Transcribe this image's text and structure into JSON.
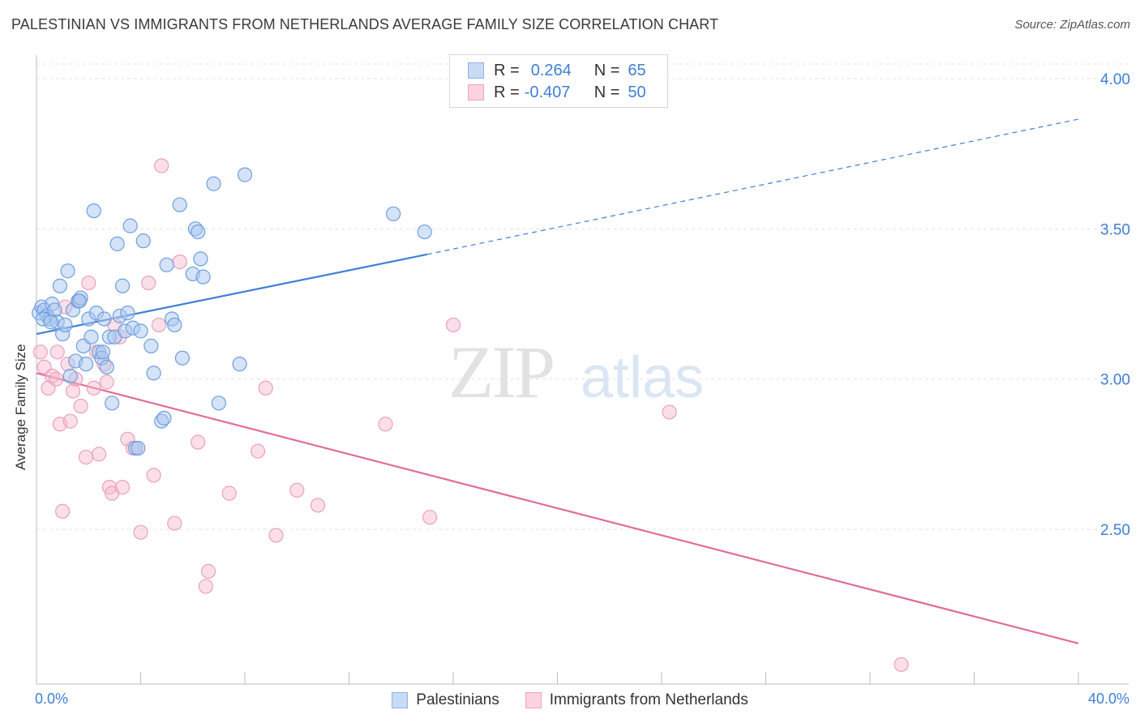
{
  "title": "PALESTINIAN VS IMMIGRANTS FROM NETHERLANDS AVERAGE FAMILY SIZE CORRELATION CHART",
  "source": "Source: ZipAtlas.com",
  "watermark": {
    "zip": "ZIP",
    "atlas": "atlas"
  },
  "legend": {
    "rows": [
      {
        "r_label": "R =",
        "r_value": "0.264",
        "n_label": "N =",
        "n_value": "65",
        "color": "#a9c7ef"
      },
      {
        "r_label": "R =",
        "r_value": "-0.407",
        "n_label": "N =",
        "n_value": "50",
        "color": "#f6b8cb"
      }
    ]
  },
  "x_axis": {
    "min_label": "0.0%",
    "max_label": "40.0%"
  },
  "chart_data": {
    "type": "scatter",
    "title": "PALESTINIAN VS IMMIGRANTS FROM NETHERLANDS AVERAGE FAMILY SIZE CORRELATION CHART",
    "xlabel": "",
    "ylabel": "Average Family Size",
    "xlim": [
      0,
      40
    ],
    "ylim": [
      2.05,
      4.12
    ],
    "y_ticks": [
      2.5,
      3.0,
      3.5,
      4.0
    ],
    "y_tick_labels": [
      "2.50",
      "3.00",
      "3.50",
      "4.00"
    ],
    "x_tick_values": [
      0,
      4,
      8,
      12,
      16,
      20,
      24,
      28,
      32,
      36,
      40
    ],
    "grid": "horizontal dashed",
    "legend_position": "top-center",
    "colors": {
      "blue": "#3f7fd6",
      "blue_fill": "#a9c7ef",
      "pink": "#e06c9a",
      "pink_fill": "#f6b8cb",
      "tick_label": "#3f7fd6"
    },
    "series": [
      {
        "name": "Palestinians",
        "color": "#3f7fd6",
        "points": [
          [
            0.1,
            3.22
          ],
          [
            0.2,
            3.24
          ],
          [
            0.3,
            3.23
          ],
          [
            0.4,
            3.21
          ],
          [
            0.5,
            3.2
          ],
          [
            0.6,
            3.25
          ],
          [
            0.7,
            3.23
          ],
          [
            0.8,
            3.19
          ],
          [
            0.9,
            3.31
          ],
          [
            1.0,
            3.15
          ],
          [
            1.1,
            3.18
          ],
          [
            1.2,
            3.36
          ],
          [
            1.3,
            3.01
          ],
          [
            1.4,
            3.23
          ],
          [
            1.5,
            3.06
          ],
          [
            1.6,
            3.26
          ],
          [
            1.7,
            3.27
          ],
          [
            1.8,
            3.11
          ],
          [
            1.9,
            3.05
          ],
          [
            2.0,
            3.2
          ],
          [
            2.1,
            3.14
          ],
          [
            2.2,
            3.56
          ],
          [
            2.3,
            3.22
          ],
          [
            2.4,
            3.09
          ],
          [
            2.5,
            3.07
          ],
          [
            2.6,
            3.2
          ],
          [
            2.7,
            3.04
          ],
          [
            2.8,
            3.14
          ],
          [
            2.9,
            2.92
          ],
          [
            3.0,
            3.14
          ],
          [
            3.1,
            3.45
          ],
          [
            3.2,
            3.21
          ],
          [
            3.3,
            3.31
          ],
          [
            3.4,
            3.16
          ],
          [
            3.5,
            3.22
          ],
          [
            3.6,
            3.51
          ],
          [
            3.7,
            3.17
          ],
          [
            3.8,
            2.77
          ],
          [
            3.9,
            2.77
          ],
          [
            4.0,
            3.16
          ],
          [
            4.1,
            3.46
          ],
          [
            4.4,
            3.11
          ],
          [
            4.5,
            3.02
          ],
          [
            4.8,
            2.86
          ],
          [
            4.9,
            2.87
          ],
          [
            5.0,
            3.38
          ],
          [
            5.2,
            3.2
          ],
          [
            5.3,
            3.18
          ],
          [
            5.5,
            3.58
          ],
          [
            5.6,
            3.07
          ],
          [
            6.0,
            3.35
          ],
          [
            6.1,
            3.5
          ],
          [
            6.2,
            3.49
          ],
          [
            6.3,
            3.4
          ],
          [
            6.4,
            3.34
          ],
          [
            6.8,
            3.65
          ],
          [
            7.0,
            2.92
          ],
          [
            7.8,
            3.05
          ],
          [
            8.0,
            3.68
          ],
          [
            13.7,
            3.55
          ],
          [
            14.9,
            3.49
          ],
          [
            0.25,
            3.2
          ],
          [
            0.55,
            3.19
          ],
          [
            1.65,
            3.26
          ],
          [
            2.55,
            3.09
          ]
        ],
        "trend": {
          "x_start": 0.0,
          "y_start": 3.15,
          "x_solid_end": 15.0,
          "y_solid_end": 3.415,
          "x_end": 40.0,
          "y_end": 3.865
        }
      },
      {
        "name": "Immigrants from Netherlands",
        "color": "#e06c9a",
        "points": [
          [
            0.15,
            3.09
          ],
          [
            0.3,
            3.04
          ],
          [
            0.45,
            2.97
          ],
          [
            0.6,
            3.01
          ],
          [
            0.75,
            3.0
          ],
          [
            0.8,
            3.09
          ],
          [
            0.9,
            2.85
          ],
          [
            1.0,
            2.56
          ],
          [
            1.1,
            3.24
          ],
          [
            1.2,
            3.05
          ],
          [
            1.3,
            2.86
          ],
          [
            1.4,
            2.96
          ],
          [
            1.5,
            3.0
          ],
          [
            1.6,
            3.26
          ],
          [
            1.7,
            2.91
          ],
          [
            1.9,
            2.74
          ],
          [
            2.0,
            3.32
          ],
          [
            2.2,
            2.97
          ],
          [
            2.3,
            3.09
          ],
          [
            2.4,
            2.75
          ],
          [
            2.6,
            3.05
          ],
          [
            2.7,
            2.99
          ],
          [
            2.8,
            2.64
          ],
          [
            2.9,
            2.62
          ],
          [
            3.0,
            3.18
          ],
          [
            3.2,
            3.14
          ],
          [
            3.3,
            2.64
          ],
          [
            3.5,
            2.8
          ],
          [
            3.7,
            2.77
          ],
          [
            4.0,
            2.49
          ],
          [
            4.3,
            3.32
          ],
          [
            4.5,
            2.68
          ],
          [
            4.7,
            3.18
          ],
          [
            4.8,
            3.71
          ],
          [
            5.3,
            2.52
          ],
          [
            5.5,
            3.39
          ],
          [
            6.2,
            2.79
          ],
          [
            6.5,
            2.31
          ],
          [
            6.6,
            2.36
          ],
          [
            7.4,
            2.62
          ],
          [
            8.5,
            2.76
          ],
          [
            8.8,
            2.97
          ],
          [
            9.2,
            2.48
          ],
          [
            10.0,
            2.63
          ],
          [
            10.8,
            2.58
          ],
          [
            13.4,
            2.85
          ],
          [
            15.1,
            2.54
          ],
          [
            16.0,
            3.18
          ],
          [
            24.3,
            2.89
          ],
          [
            33.2,
            2.05
          ]
        ],
        "trend": {
          "x_start": 0.0,
          "y_start": 3.02,
          "x_end": 40.0,
          "y_end": 2.12
        }
      }
    ]
  }
}
